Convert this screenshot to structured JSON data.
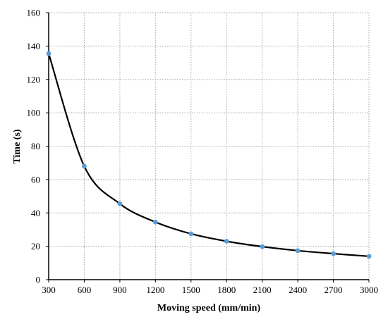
{
  "chart_data": {
    "type": "line",
    "title": "",
    "xlabel": "Moving speed (mm/min)",
    "ylabel": "Time (s)",
    "xlim": [
      300,
      3000
    ],
    "ylim": [
      0,
      160
    ],
    "xticks": [
      300,
      600,
      900,
      1200,
      1500,
      1800,
      2100,
      2400,
      2700,
      3000
    ],
    "yticks": [
      0,
      20,
      40,
      60,
      80,
      100,
      120,
      140,
      160
    ],
    "grid": true,
    "grid_style": "dotted",
    "legend": false,
    "series": [
      {
        "x": [
          300,
          600,
          900,
          1200,
          1500,
          1800,
          2100,
          2400,
          2700,
          3000
        ],
        "y": [
          135.5,
          68,
          45.5,
          34.5,
          27.5,
          23,
          19.8,
          17.4,
          15.6,
          14
        ],
        "line_color": "#000000",
        "marker_color": "#5b9bd5",
        "smooth": true
      }
    ]
  }
}
